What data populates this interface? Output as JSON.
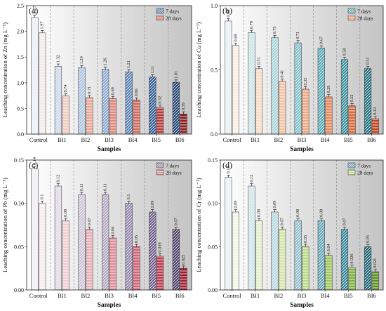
{
  "figure": {
    "xlabel": "Samples"
  },
  "chart_data": [
    {
      "type": "bar",
      "panel_label": "(a)",
      "ylabel": "Leaching concentration of Zn (mg L⁻¹)",
      "categories": [
        "Control",
        "BI1",
        "BI2",
        "BI3",
        "BI4",
        "BI5",
        "BI6"
      ],
      "ylim": [
        0,
        2.5
      ],
      "yticks": [
        0.0,
        0.5,
        1.0,
        1.5,
        2.0,
        2.5
      ],
      "ytick_labels": [
        "0.0",
        "0.5",
        "1.0",
        "1.5",
        "2.0",
        "2.5"
      ],
      "series": [
        {
          "name": "7 days",
          "values": [
            2.27,
            1.32,
            1.29,
            1.26,
            1.21,
            1.11,
            1.01
          ],
          "labels": [
            "2.27",
            "1.32",
            "1.29",
            "1.26",
            "1.21",
            "1.11",
            "1.01"
          ]
        },
        {
          "name": "28 days",
          "values": [
            1.97,
            0.74,
            0.71,
            0.69,
            0.66,
            0.52,
            0.39
          ],
          "labels": [
            "1.97",
            "0.74",
            "0.71",
            "0.69",
            "0.66",
            "0.52",
            "0.39"
          ]
        }
      ],
      "colors_7": [
        "#e8eef4",
        "#c8d6e8",
        "#a9c0dc",
        "#8aa7cf",
        "#587fb0",
        "#2f5b93",
        "#1d3f6e"
      ],
      "colors_28": [
        "#f4ece6",
        "#f1cdc0",
        "#e8a898",
        "#dc8a7c",
        "#cf6a5e",
        "#b83a3a",
        "#8a1e22"
      ],
      "legend_position": "top-right",
      "grid": false
    },
    {
      "type": "bar",
      "panel_label": "(b)",
      "ylabel": "Leaching concentration of Cu (mg L⁻¹)",
      "categories": [
        "Control",
        "BI1",
        "BI2",
        "BI3",
        "BI4",
        "BI5",
        "BI6"
      ],
      "ylim": [
        0,
        1.0
      ],
      "yticks": [
        0.0,
        0.5,
        1.0
      ],
      "ytick_labels": [
        "0.0",
        "0.5",
        "1.0"
      ],
      "series": [
        {
          "name": "7 days",
          "values": [
            0.88,
            0.79,
            0.75,
            0.71,
            0.67,
            0.58,
            0.51
          ],
          "labels": [
            "0.88",
            "0.79",
            "0.75",
            "0.71",
            "0.67",
            "0.58",
            "0.51"
          ]
        },
        {
          "name": "28 days",
          "values": [
            0.69,
            0.51,
            0.41,
            0.35,
            0.29,
            0.22,
            0.12
          ],
          "labels": [
            "0.69",
            "0.51",
            "0.41",
            "0.35",
            "0.29",
            "0.22",
            "0.12"
          ]
        }
      ],
      "colors_7": [
        "#e6f1f3",
        "#c7e2e6",
        "#a4d2d8",
        "#7fbfc8",
        "#56a7b3",
        "#348d9a",
        "#1d6f7c"
      ],
      "colors_28": [
        "#fbeee4",
        "#f8dcc9",
        "#f3c3a6",
        "#eda884",
        "#e48a5e",
        "#d96a3b",
        "#c2461f"
      ],
      "legend_position": "top-right",
      "grid": false
    },
    {
      "type": "bar",
      "panel_label": "(c)",
      "ylabel": "Leaching concentration of Pb (mg L⁻¹)",
      "categories": [
        "Control",
        "BI1",
        "BI2",
        "BI3",
        "BI4",
        "BI5",
        "BI6"
      ],
      "ylim": [
        0,
        0.15
      ],
      "yticks": [
        0.0,
        0.05,
        0.1,
        0.15
      ],
      "ytick_labels": [
        "0.00",
        "0.05",
        "0.10",
        "0.15"
      ],
      "series": [
        {
          "name": "7 days",
          "values": [
            0.14,
            0.12,
            0.11,
            0.11,
            0.1,
            0.09,
            0.07
          ],
          "labels": [
            "0.14",
            "0.12",
            "0.11",
            "0.11",
            "0.1",
            "0.09",
            "0.07"
          ]
        },
        {
          "name": "28 days",
          "values": [
            0.1,
            0.08,
            0.07,
            0.06,
            0.05,
            0.039,
            0.025
          ],
          "labels": [
            "0.1",
            "0.08",
            "0.07",
            "0.06",
            "0.05",
            "0.039",
            "0.025"
          ]
        }
      ],
      "colors_7": [
        "#efedf2",
        "#ddd8e3",
        "#c8c0d3",
        "#b0a6c2",
        "#9384ab",
        "#6e5c8c",
        "#4a3a66"
      ],
      "colors_28": [
        "#f7ecee",
        "#f0cfd4",
        "#e7b0b8",
        "#dc8d98",
        "#cf6476",
        "#be3b52",
        "#a11c33"
      ],
      "legend_position": "top-right",
      "grid": false
    },
    {
      "type": "bar",
      "panel_label": "(d)",
      "ylabel": "Leaching concentration of Cr (mg L⁻¹)",
      "categories": [
        "Control",
        "BI1",
        "BI2",
        "BI3",
        "BI4",
        "BI5",
        "BI6"
      ],
      "ylim": [
        0,
        0.15
      ],
      "yticks": [
        0.0,
        0.05,
        0.1,
        0.15
      ],
      "ytick_labels": [
        "0.00",
        "0.05",
        "0.10",
        "0.15"
      ],
      "series": [
        {
          "name": "7 days",
          "values": [
            0.13,
            0.12,
            0.09,
            0.08,
            0.08,
            0.07,
            0.05
          ],
          "labels": [
            "0.13",
            "0.12",
            "0.09",
            "0.08",
            "0.08",
            "0.07",
            "0.05"
          ]
        },
        {
          "name": "28 days",
          "values": [
            0.09,
            0.08,
            0.07,
            0.05,
            0.04,
            0.026,
            0.021
          ],
          "labels": [
            "0.09",
            "0.08",
            "0.07",
            "0.05",
            "0.04",
            "0.026",
            "0.021"
          ]
        }
      ],
      "colors_7": [
        "#e8f1f3",
        "#cfe3ea",
        "#b3d4de",
        "#8ebfcd",
        "#5fa3b7",
        "#2f8298",
        "#1b6275"
      ],
      "colors_28": [
        "#f1f6e6",
        "#e4efcd",
        "#d3e6ac",
        "#bcd987",
        "#9fc75f",
        "#7eb23a",
        "#5d9125"
      ],
      "legend_position": "top-right",
      "grid": false
    }
  ]
}
